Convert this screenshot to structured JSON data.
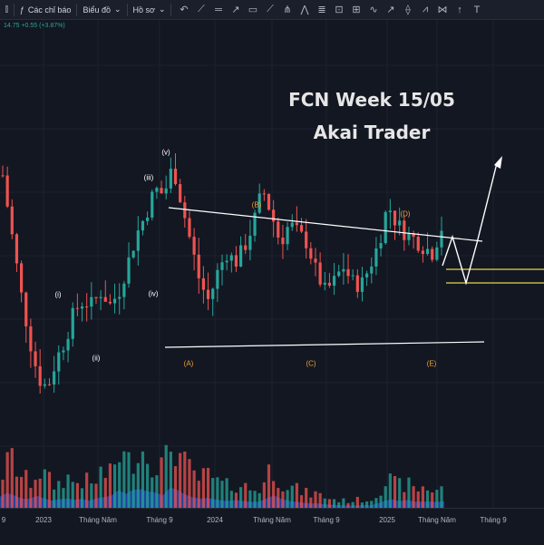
{
  "toolbar": {
    "items": [
      "Các chỉ báo",
      "Biểu đồ",
      "Hồ sơ"
    ],
    "tools": [
      "undo-icon",
      "line-icon",
      "h-line-icon",
      "trend-icon",
      "rect-icon",
      "path-icon",
      "pitchfork-icon",
      "zigzag-icon",
      "fib-icon",
      "text-box-icon",
      "gann-icon",
      "wave-icon",
      "arrow-icon",
      "projection-icon",
      "cycle-icon",
      "xabcd-icon",
      "arrow-marker-icon",
      "text-icon"
    ]
  },
  "ohlc_text": "14.75 +0.55 (+3.87%)",
  "title": [
    "FCN Week 15/05",
    "Akai Trader"
  ],
  "colors": {
    "up": "#26a69a",
    "down": "#ef5350",
    "volume_area": "#2962ff",
    "annotation": "#ffffff",
    "wave_label_orange": "#f0a030",
    "support": "#e8d44d"
  },
  "chart_data": {
    "type": "candlestick",
    "title": "FCN Week 15/05",
    "subtitle": "Akai Trader",
    "x_ticks": [
      "9",
      "2023",
      "Tháng Năm",
      "Tháng 9",
      "2024",
      "Tháng Năm",
      "Tháng 9",
      "2025",
      "Tháng Năm",
      "Tháng 9"
    ],
    "wave_labels": [
      "(i)",
      "(ii)",
      "(iii)",
      "(iv)",
      "(v)",
      "(A)",
      "(B)",
      "(C)",
      "(D)",
      "(E)"
    ],
    "close_path": [
      19.5,
      16.5,
      13.5,
      11.0,
      9.0,
      8.5,
      10.0,
      11.0,
      12.5,
      13.0,
      12.8,
      13.5,
      12.8,
      13.5,
      15.0,
      16.5,
      17.5,
      18.8,
      18.5,
      20.0,
      18.0,
      16.0,
      14.0,
      13.0,
      14.5,
      15.5,
      15.0,
      15.8,
      17.0,
      18.8,
      17.5,
      16.0,
      17.0,
      16.5,
      16.0,
      14.5,
      13.5,
      14.0,
      14.8,
      14.0,
      13.8,
      14.8,
      16.0,
      18.0,
      17.0,
      16.5,
      16.2,
      15.8,
      15.5,
      16.8
    ],
    "volume_path": [
      0.5,
      0.7,
      0.45,
      0.35,
      0.55,
      0.4,
      0.3,
      0.45,
      0.35,
      0.4,
      0.3,
      0.5,
      0.45,
      0.8,
      0.6,
      0.9,
      0.75,
      0.7,
      0.55,
      1.0,
      0.65,
      0.5,
      0.4,
      0.45,
      0.35,
      0.3,
      0.35,
      0.3,
      0.25,
      0.3,
      0.6,
      0.4,
      0.3,
      0.25,
      0.2,
      0.2,
      0.15,
      0.12,
      0.1,
      0.1,
      0.12,
      0.1,
      0.25,
      0.4,
      0.3,
      0.35,
      0.25,
      0.3,
      0.25,
      0.3
    ],
    "annotations": [
      "triangle upper trendline",
      "triangle lower trendline",
      "projected zigzag path",
      "breakout arrow",
      "support zone"
    ]
  }
}
